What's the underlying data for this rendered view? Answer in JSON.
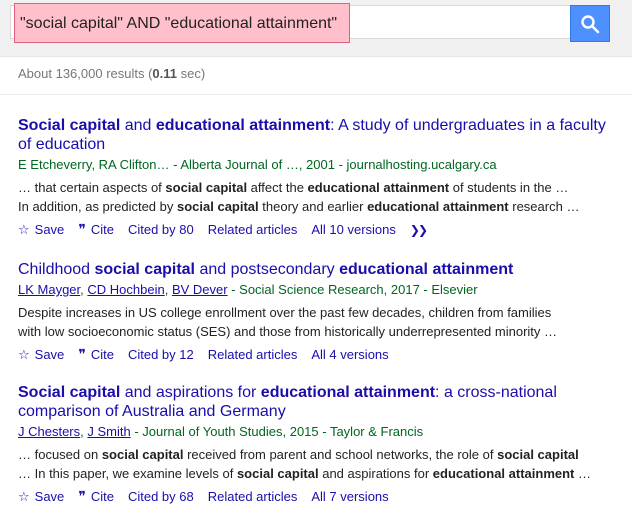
{
  "search": {
    "query": "\"social capital\" AND \"educational attainment\""
  },
  "stats": {
    "prefix": "About 136,000 results (",
    "time": "0.11",
    "suffix": " sec)"
  },
  "actions": {
    "save": "Save",
    "cite": "Cite",
    "related": "Related articles"
  },
  "results": [
    {
      "title_parts": [
        {
          "t": "Social capital",
          "b": true
        },
        {
          "t": " and ",
          "b": false
        },
        {
          "t": "educational attainment",
          "b": true
        },
        {
          "t": ": A study of undergraduates in a faculty of education",
          "b": false
        }
      ],
      "authors": [
        {
          "t": "E Etcheverry, RA Clifton",
          "link": false
        }
      ],
      "source": "… - Alberta Journal of …, 2001 - journalhosting.ucalgary.ca",
      "snippet_lines": [
        [
          {
            "t": "… that certain aspects of ",
            "b": false
          },
          {
            "t": "social capital",
            "b": true
          },
          {
            "t": " affect the ",
            "b": false
          },
          {
            "t": "educational attainment",
            "b": true
          },
          {
            "t": " of students in the …",
            "b": false
          }
        ],
        [
          {
            "t": "In addition, as predicted by ",
            "b": false
          },
          {
            "t": "social capital",
            "b": true
          },
          {
            "t": " theory and earlier ",
            "b": false
          },
          {
            "t": "educational attainment",
            "b": true
          },
          {
            "t": " research …",
            "b": false
          }
        ]
      ],
      "cited_by": "Cited by 80",
      "versions": "All 10 versions",
      "has_more": true
    },
    {
      "title_parts": [
        {
          "t": "Childhood ",
          "b": false
        },
        {
          "t": "social capital",
          "b": true
        },
        {
          "t": " and postsecondary ",
          "b": false
        },
        {
          "t": "educational attainment",
          "b": true
        }
      ],
      "authors": [
        {
          "t": "LK Mayger",
          "link": true
        },
        {
          "t": ", ",
          "link": false
        },
        {
          "t": "CD Hochbein",
          "link": true
        },
        {
          "t": ", ",
          "link": false
        },
        {
          "t": "BV Dever",
          "link": true
        }
      ],
      "source": " - Social Science Research, 2017 - Elsevier",
      "snippet_lines": [
        [
          {
            "t": "Despite increases in US college enrollment over the past few decades, children from families",
            "b": false
          }
        ],
        [
          {
            "t": "with low socioeconomic status (SES) and those from historically underrepresented minority …",
            "b": false
          }
        ]
      ],
      "cited_by": "Cited by 12",
      "versions": "All 4 versions",
      "has_more": false
    },
    {
      "title_parts": [
        {
          "t": "Social capital",
          "b": true
        },
        {
          "t": " and aspirations for ",
          "b": false
        },
        {
          "t": "educational attainment",
          "b": true
        },
        {
          "t": ": a cross-national comparison of Australia and Germany",
          "b": false
        }
      ],
      "authors": [
        {
          "t": "J Chesters",
          "link": true
        },
        {
          "t": ", ",
          "link": false
        },
        {
          "t": "J Smith",
          "link": true
        }
      ],
      "source": " - Journal of Youth Studies, 2015 - Taylor & Francis",
      "snippet_lines": [
        [
          {
            "t": "… focused on ",
            "b": false
          },
          {
            "t": "social capital",
            "b": true
          },
          {
            "t": " received from parent and school networks, the role of ",
            "b": false
          },
          {
            "t": "social capital",
            "b": true
          }
        ],
        [
          {
            "t": "… In this paper, we examine levels of ",
            "b": false
          },
          {
            "t": "social capital",
            "b": true
          },
          {
            "t": " and aspirations for ",
            "b": false
          },
          {
            "t": "educational attainment",
            "b": true
          },
          {
            "t": " …",
            "b": false
          }
        ]
      ],
      "cited_by": "Cited by 68",
      "versions": "All 7 versions",
      "has_more": false
    }
  ]
}
